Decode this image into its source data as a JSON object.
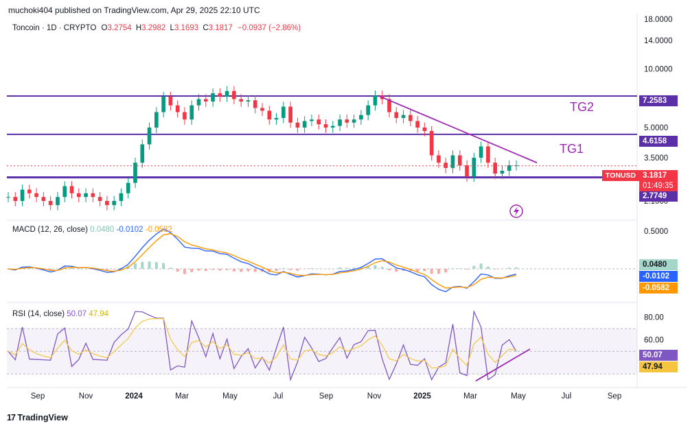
{
  "publisher": "muchoki404 published on TradingView.com, Apr 29, 2025 22:10 UTC",
  "symbol": {
    "name": "Toncoin · 1D · CRYPTO",
    "open_label": "O",
    "open": "3.2754",
    "high_label": "H",
    "high": "3.2982",
    "low_label": "L",
    "low": "3.1693",
    "close_label": "C",
    "close": "3.1817",
    "change": "−0.0937 (−2.86%)"
  },
  "price_axis": [
    "18.0000",
    "14.0000",
    "10.0000",
    "5.0000",
    "3.5000",
    "2.1000"
  ],
  "levels": [
    {
      "value": "7.2583",
      "color": "#5b2fa8"
    },
    {
      "value": "4.6158",
      "color": "#5b2fa8"
    },
    {
      "value": "2.7749",
      "color": "#5b2fa8"
    }
  ],
  "targets": [
    "TG2",
    "TG1"
  ],
  "ticker_badge": {
    "symbol": "TONUSD",
    "price": "3.1817",
    "countdown": "01:49:35",
    "color": "#f23645"
  },
  "macd": {
    "label": "MACD (12, 26, close)",
    "hist": "0.0480",
    "macd": "-0.0102",
    "signal": "-0.0582",
    "axis": [
      "0.5000"
    ],
    "colors": {
      "hist": "#a5d6c8",
      "macd": "#2962ff",
      "signal": "#ff9800"
    }
  },
  "rsi": {
    "label": "RSI (14, close)",
    "value": "50.07",
    "ma": "47.94",
    "axis": [
      "80.00",
      "60.00"
    ],
    "colors": {
      "rsi": "#7e57c2",
      "ma": "#f5c542"
    }
  },
  "time_axis": [
    "Sep",
    "Nov",
    "2024",
    "Mar",
    "May",
    "Jul",
    "Sep",
    "Nov",
    "2025",
    "Mar",
    "May",
    "Jul",
    "Sep"
  ],
  "brand": "TradingView",
  "chart_data": {
    "type": "line",
    "title": "Toncoin · 1D · CRYPTO",
    "xlabel": "",
    "ylabel": "",
    "y_scale": "log",
    "ylim": [
      1.8,
      18
    ],
    "series": [
      {
        "name": "TONUSD",
        "values": [
          2.2,
          2.1,
          2.4,
          2.3,
          2.2,
          2.1,
          2.0,
          2.2,
          2.5,
          2.3,
          2.2,
          2.3,
          2.2,
          2.1,
          2.0,
          2.1,
          2.3,
          2.6,
          3.3,
          4.1,
          5.0,
          6.0,
          7.2,
          6.5,
          6.0,
          5.5,
          6.5,
          7.0,
          6.8,
          7.5,
          7.2,
          7.7,
          7.0,
          6.8,
          6.9,
          6.3,
          6.1,
          5.5,
          5.6,
          6.4,
          5.3,
          5.0,
          5.4,
          5.5,
          5.2,
          5.0,
          5.1,
          5.5,
          5.3,
          5.5,
          5.8,
          6.5,
          7.3,
          7.0,
          6.0,
          5.6,
          5.8,
          5.4,
          5.0,
          4.8,
          3.6,
          3.3,
          3.1,
          3.6,
          3.2,
          2.8,
          3.5,
          4.0,
          3.3,
          2.9,
          3.0,
          3.2,
          3.2
        ]
      }
    ],
    "horizontal_levels": [
      7.2583,
      4.6158,
      2.7749
    ],
    "annotations": [
      "TG2",
      "TG1"
    ]
  }
}
